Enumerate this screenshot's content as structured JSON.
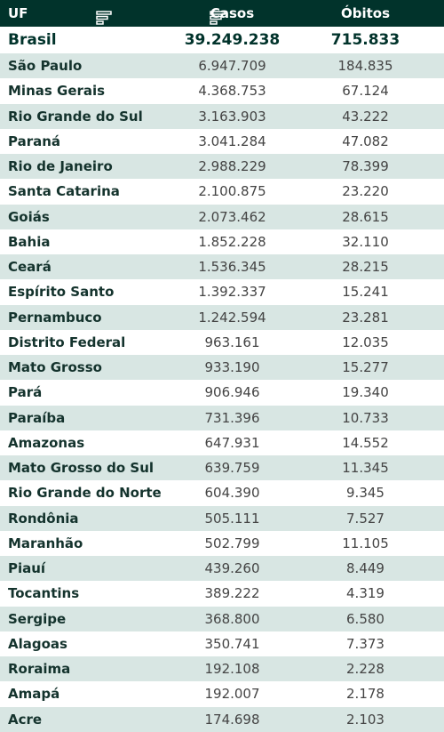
{
  "header": {
    "uf": "UF",
    "casos": "Casos",
    "obitos": "Óbitos"
  },
  "total": {
    "uf": "Brasil",
    "casos": "39.249.238",
    "obitos": "715.833"
  },
  "rows": [
    {
      "uf": "São Paulo",
      "casos": "6.947.709",
      "obitos": "184.835"
    },
    {
      "uf": "Minas Gerais",
      "casos": "4.368.753",
      "obitos": "67.124"
    },
    {
      "uf": "Rio Grande do Sul",
      "casos": "3.163.903",
      "obitos": "43.222"
    },
    {
      "uf": "Paraná",
      "casos": "3.041.284",
      "obitos": "47.082"
    },
    {
      "uf": "Rio de Janeiro",
      "casos": "2.988.229",
      "obitos": "78.399"
    },
    {
      "uf": "Santa Catarina",
      "casos": "2.100.875",
      "obitos": "23.220"
    },
    {
      "uf": "Goiás",
      "casos": "2.073.462",
      "obitos": "28.615"
    },
    {
      "uf": "Bahia",
      "casos": "1.852.228",
      "obitos": "32.110"
    },
    {
      "uf": "Ceará",
      "casos": "1.536.345",
      "obitos": "28.215"
    },
    {
      "uf": "Espírito Santo",
      "casos": "1.392.337",
      "obitos": "15.241"
    },
    {
      "uf": "Pernambuco",
      "casos": "1.242.594",
      "obitos": "23.281"
    },
    {
      "uf": "Distrito Federal",
      "casos": "963.161",
      "obitos": "12.035"
    },
    {
      "uf": "Mato Grosso",
      "casos": "933.190",
      "obitos": "15.277"
    },
    {
      "uf": "Pará",
      "casos": "906.946",
      "obitos": "19.340"
    },
    {
      "uf": "Paraíba",
      "casos": "731.396",
      "obitos": "10.733"
    },
    {
      "uf": "Amazonas",
      "casos": "647.931",
      "obitos": "14.552"
    },
    {
      "uf": "Mato Grosso do Sul",
      "casos": "639.759",
      "obitos": "11.345"
    },
    {
      "uf": "Rio Grande do Norte",
      "casos": "604.390",
      "obitos": "9.345"
    },
    {
      "uf": "Rondônia",
      "casos": "505.111",
      "obitos": "7.527"
    },
    {
      "uf": "Maranhão",
      "casos": "502.799",
      "obitos": "11.105"
    },
    {
      "uf": "Piauí",
      "casos": "439.260",
      "obitos": "8.449"
    },
    {
      "uf": "Tocantins",
      "casos": "389.222",
      "obitos": "4.319"
    },
    {
      "uf": "Sergipe",
      "casos": "368.800",
      "obitos": "6.580"
    },
    {
      "uf": "Alagoas",
      "casos": "350.741",
      "obitos": "7.373"
    },
    {
      "uf": "Roraima",
      "casos": "192.108",
      "obitos": "2.228"
    },
    {
      "uf": "Amapá",
      "casos": "192.007",
      "obitos": "2.178"
    },
    {
      "uf": "Acre",
      "casos": "174.698",
      "obitos": "2.103"
    }
  ],
  "icons": {
    "sort_casos": "sort-icon",
    "sort_obitos": "sort-icon"
  },
  "colors": {
    "header_bg": "#01332b",
    "alt_row_bg": "#d8e6e3",
    "total_text": "#01332b"
  }
}
